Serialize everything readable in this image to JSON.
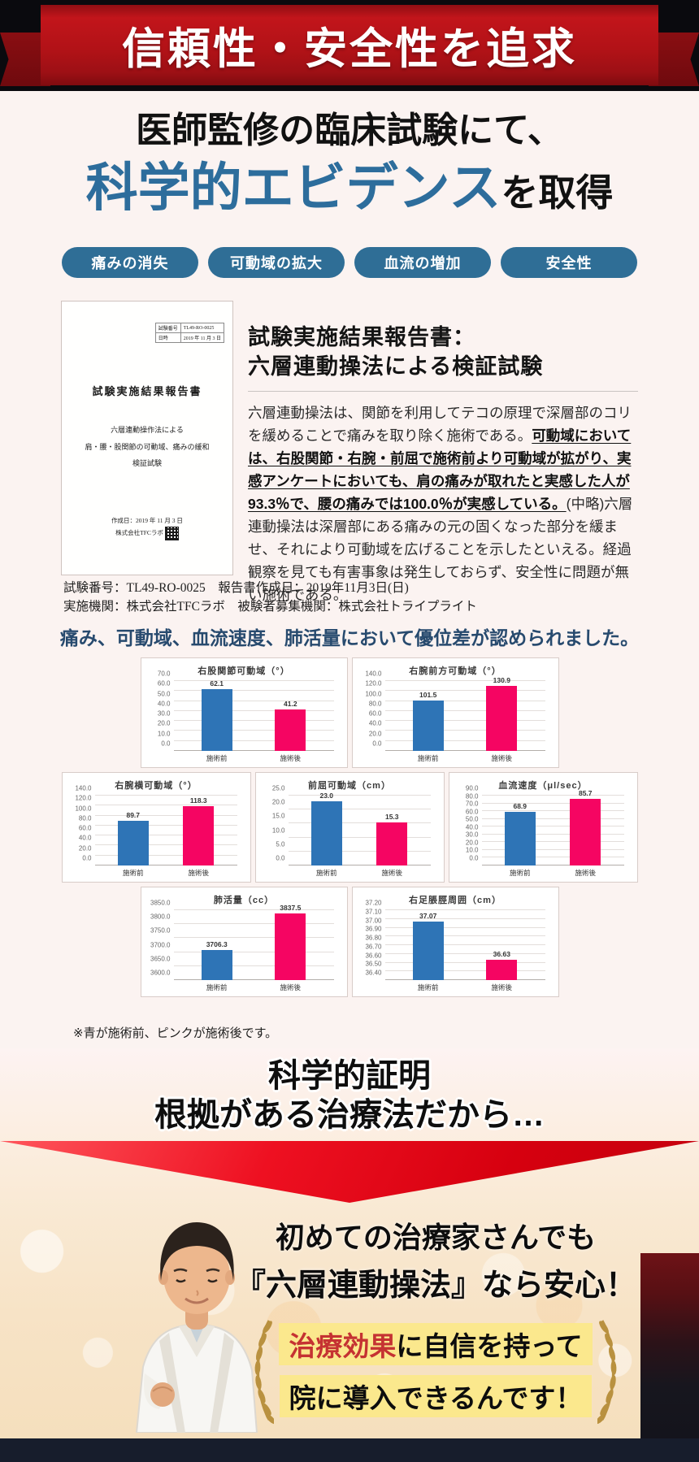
{
  "banner": {
    "title": "信頼性・安全性を追求"
  },
  "headline": {
    "line1": "医師監修の臨床試験にて、",
    "line2_highlight": "科学的エビデンス",
    "line2_rest": "を取得"
  },
  "pills": [
    "痛みの消失",
    "可動域の拡大",
    "血流の増加",
    "安全性"
  ],
  "document_preview": {
    "meta": [
      {
        "label": "試験番号",
        "value": "TL49-RO-0025"
      },
      {
        "label": "日時",
        "value": "2019 年 11 月 3 日"
      }
    ],
    "title": "試験実施結果報告書",
    "subtitle_lines": [
      "六層連動操作法による",
      "肩・腰・股関節の可動域、痛みの緩和",
      "検証試験"
    ],
    "footer_line1": "作成日：2019 年 11 月 3 日",
    "footer_line2": "株式会社TFCラボ"
  },
  "report_summary": {
    "heading_line1": "試験実施結果報告書：",
    "heading_line2": "六層連動操法による検証試験",
    "body_normal1": "六層連動操法は、関節を利用してテコの原理で深層部のコリを緩めることで痛みを取り除く施術である。",
    "body_emphasis": "可動域においては、右股関節・右腕・前屈で施術前より可動域が拡がり、実感アンケートにおいても、肩の痛みが取れたと実感した人が93.3％で、腰の痛みでは100.0％が実感している。",
    "body_normal2": "(中略)六層連動操法は深層部にある痛みの元の固くなった部分を緩ませ、それにより可動域を広げることを示したといえる。経過観察を見ても有害事象は発生しておらず、安全性に問題が無い施術である。"
  },
  "trial_info": {
    "line1": "試験番号：TL49-RO-0025　報告書作成日：2019年11月3日(日)",
    "line2": "実施機関：株式会社TFCラボ　被験者募集機関：株式会社トライプライト"
  },
  "results_heading": "痛み、可動域、血流速度、肺活量において優位差が認められました。",
  "chart_note": "※青が施術前、ピンクが施術後です。",
  "chart_layout_rows": [
    [
      0,
      1
    ],
    [
      2,
      3,
      4
    ],
    [
      5,
      6
    ]
  ],
  "chart_data": [
    {
      "type": "bar",
      "title": "右股関節可動域（°）",
      "categories": [
        "施術前",
        "施術後"
      ],
      "values": [
        62.1,
        41.2
      ],
      "value_labels": [
        "62.1",
        "41.2"
      ],
      "ylim": [
        0,
        70
      ],
      "ytick_step": 10,
      "tick_decimals": 1
    },
    {
      "type": "bar",
      "title": "右腕前方可動域（°）",
      "categories": [
        "施術前",
        "施術後"
      ],
      "values": [
        101.5,
        130.9
      ],
      "value_labels": [
        "101.5",
        "130.9"
      ],
      "ylim": [
        0,
        140
      ],
      "ytick_step": 20,
      "tick_decimals": 1
    },
    {
      "type": "bar",
      "title": "右腕横可動域（°）",
      "categories": [
        "施術前",
        "施術後"
      ],
      "values": [
        89.7,
        118.3
      ],
      "value_labels": [
        "89.7",
        "118.3"
      ],
      "ylim": [
        0,
        140
      ],
      "ytick_step": 20,
      "tick_decimals": 1
    },
    {
      "type": "bar",
      "title": "前屈可動域（cm）",
      "categories": [
        "施術前",
        "施術後"
      ],
      "values": [
        23.0,
        15.3
      ],
      "value_labels": [
        "23.0",
        "15.3"
      ],
      "ylim": [
        0,
        25
      ],
      "ytick_step": 5,
      "tick_decimals": 1
    },
    {
      "type": "bar",
      "title": "血流速度（μl/sec）",
      "categories": [
        "施術前",
        "施術後"
      ],
      "values": [
        68.9,
        85.7
      ],
      "value_labels": [
        "68.9",
        "85.7"
      ],
      "ylim": [
        0,
        90
      ],
      "ytick_step": 10,
      "tick_decimals": 1
    },
    {
      "type": "bar",
      "title": "肺活量（cc）",
      "categories": [
        "施術前",
        "施術後"
      ],
      "values": [
        3706.3,
        3837.5
      ],
      "value_labels": [
        "3706.3",
        "3837.5"
      ],
      "ylim": [
        3600,
        3850
      ],
      "ytick_step": 50,
      "tick_decimals": 1
    },
    {
      "type": "bar",
      "title": "右足脹脛周囲（cm）",
      "categories": [
        "施術前",
        "施術後"
      ],
      "values": [
        37.07,
        36.63
      ],
      "value_labels": [
        "37.07",
        "36.63"
      ],
      "ylim": [
        36.4,
        37.2
      ],
      "ytick_step": 0.1,
      "tick_decimals": 2
    }
  ],
  "proof": {
    "line1": "科学的証明",
    "line2": "根拠がある治療法だから…"
  },
  "closing": {
    "line1": "初めての治療家さんでも",
    "line2": "『六層連動操法』なら安心！",
    "highlight1_red": "治療効果",
    "highlight1_rest": "に自信を持って",
    "highlight2": "院に導入できるんです！"
  },
  "colors": {
    "banner_red": "#b21217",
    "accent_blue": "#2f6e96",
    "headline_blue": "#2d6d9c",
    "results_heading_blue": "#274a6e",
    "bar_blue": "#2e74b6",
    "bar_pink": "#f50562",
    "highlight_yellow": "#fbe88d",
    "emphasis_red": "#c53232",
    "background_pink": "#fbf3f1",
    "footer_navy": "#171d2c"
  }
}
